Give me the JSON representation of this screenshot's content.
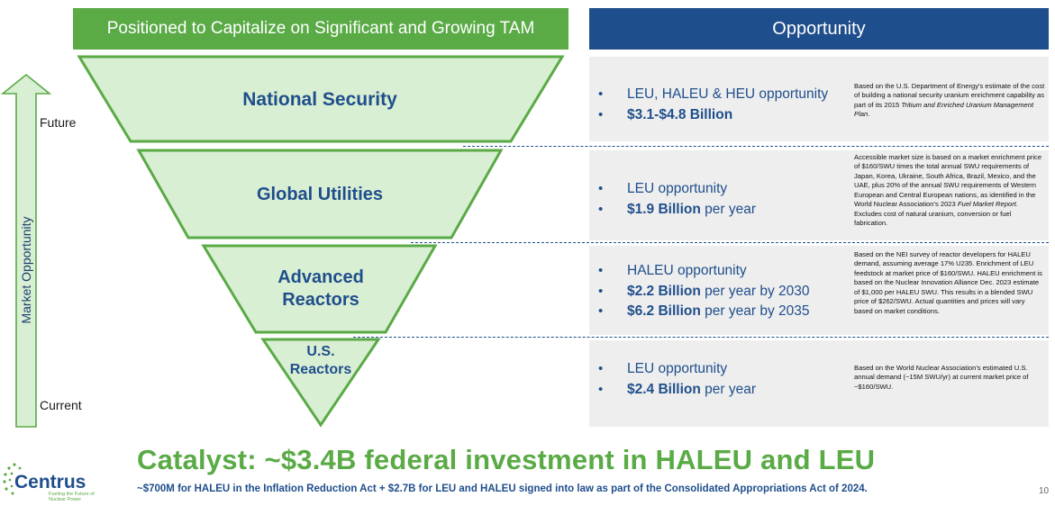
{
  "header": {
    "left_title": "Positioned to Capitalize on Significant and Growing TAM",
    "right_title": "Opportunity"
  },
  "axis": {
    "label": "Market Opportunity",
    "top_label": "Future",
    "bottom_label": "Current"
  },
  "tiers": [
    {
      "label": "National Security",
      "bullets": [
        {
          "regular": "LEU, HALEU & HEU opportunity",
          "bold": ""
        },
        {
          "regular": "",
          "bold": "$3.1-$4.8 Billion"
        }
      ],
      "note_html": "Based on the U.S. Department of Energy's estimate of the cost of building a national security uranium enrichment capability as part of its 2015 <i>Tritium and Enriched Uranium Management Plan</i>."
    },
    {
      "label": "Global Utilities",
      "bullets": [
        {
          "regular": "LEU opportunity",
          "bold": ""
        },
        {
          "bold": "$1.9 Billion",
          "regular": " per year"
        }
      ],
      "note_html": "Accessible market size is based on a market enrichment price of $160/SWU times the total annual SWU requirements of Japan, Korea, Ukraine, South Africa, Brazil, Mexico, and the UAE, plus 20% of the annual SWU requirements of Western European and Central European nations, as identified in the World Nuclear Association's 2023 <i>Fuel Market Report</i>. Excludes cost of natural uranium, conversion or fuel fabrication."
    },
    {
      "label_line1": "Advanced",
      "label_line2": "Reactors",
      "bullets": [
        {
          "regular": "HALEU opportunity",
          "bold": ""
        },
        {
          "bold": "$2.2 Billion",
          "regular": " per year by 2030"
        },
        {
          "bold": "$6.2 Billion",
          "regular": " per year by 2035"
        }
      ],
      "note_html": "Based on the NEI survey of reactor developers for HALEU demand, assuming average 17% U235. Enrichment of LEU feedstock at market price of $160/SWU. HALEU enrichment is based on the Nuclear Innovation Alliance Dec. 2023 estimate of $1,000 per HALEU SWU. This results in a blended SWU price of $262/SWU. Actual quantities and prices will vary based on market conditions."
    },
    {
      "label_line1": "U.S.",
      "label_line2": "Reactors",
      "bullets": [
        {
          "regular": "LEU opportunity",
          "bold": ""
        },
        {
          "bold": "$2.4 Billion",
          "regular": " per year"
        }
      ],
      "note_html": "Based on the World Nuclear Association's estimated U.S. annual demand (~15M SWU/yr) at current market price of ~$160/SWU."
    }
  ],
  "catalyst": {
    "headline": "Catalyst:  ~$3.4B federal investment in HALEU and LEU",
    "subline": "~$700M for HALEU in the Inflation Reduction Act + $2.7B for LEU and HALEU signed into law as part of the Consolidated Appropriations Act of 2024."
  },
  "logo": {
    "name": "Centrus",
    "tagline": "Fueling the Future of Nuclear Power"
  },
  "page_number": "10",
  "colors": {
    "green": "#5aaa46",
    "light_green": "#d9efd3",
    "navy": "#1f4e8c",
    "panel_gray": "#eeeeee"
  }
}
